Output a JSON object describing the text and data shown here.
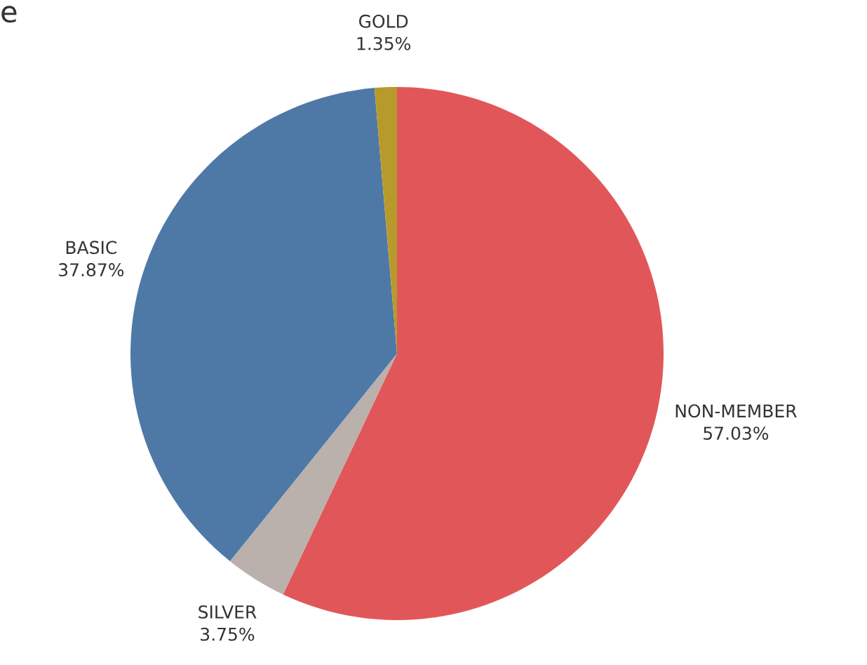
{
  "chart_data": {
    "type": "pie",
    "categories": [
      "NON-MEMBER",
      "SILVER",
      "BASIC",
      "GOLD"
    ],
    "values": [
      57.03,
      3.75,
      37.87,
      1.35
    ],
    "value_labels": [
      "57.03%",
      "3.75%",
      "37.87%",
      "1.35%"
    ],
    "colors": [
      "#e15759",
      "#bab0ac",
      "#4e79a7",
      "#b89a2c"
    ],
    "annotations": [
      "e"
    ]
  }
}
